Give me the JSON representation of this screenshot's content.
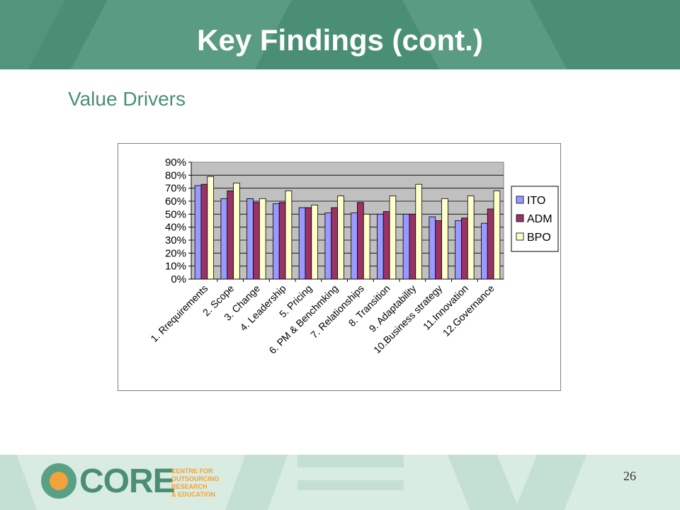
{
  "slide": {
    "title": "Key Findings (cont.)",
    "subtitle": "Value Drivers",
    "page_number": "26"
  },
  "logo": {
    "word": "CORE",
    "sub_lines": [
      "CENTRE FOR",
      "OUTSOURCING",
      "RESEARCH",
      "& EDUCATION"
    ]
  },
  "chart_data": {
    "type": "bar",
    "categories": [
      "1. Rrequirements",
      "2. Scope",
      "3. Change",
      "4. Leadership",
      "5. Pricing",
      "6. PM & Benchmking",
      "7. Relationships",
      "8. Transition",
      "9. Adaptability",
      "10.Business strategy",
      "11.Innovation",
      "12.Governance"
    ],
    "series": [
      {
        "name": "ITO",
        "color": "#9999ff",
        "values": [
          72,
          62,
          62,
          58,
          55,
          51,
          51,
          50,
          50,
          48,
          45,
          43
        ]
      },
      {
        "name": "ADM",
        "color": "#993366",
        "values": [
          73,
          68,
          59,
          59,
          55,
          55,
          59,
          52,
          50,
          45,
          47,
          54
        ]
      },
      {
        "name": "BPO",
        "color": "#ffffcc",
        "values": [
          79,
          74,
          62,
          68,
          57,
          64,
          50,
          64,
          73,
          62,
          64,
          68
        ]
      }
    ],
    "ylim": [
      0,
      90
    ],
    "y_ticks": [
      "0%",
      "10%",
      "20%",
      "30%",
      "40%",
      "50%",
      "60%",
      "70%",
      "80%",
      "90%"
    ],
    "plot_background": "#c0c0c0",
    "grid": true,
    "legend": "right"
  }
}
